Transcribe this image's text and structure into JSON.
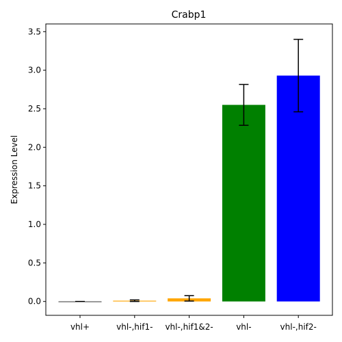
{
  "chart_data": {
    "type": "bar",
    "title": "Crabp1",
    "xlabel": "",
    "ylabel": "Expression Level",
    "categories": [
      "vhl+",
      "vhl-,hif1-",
      "vhl-,hif1&2-",
      "vhl-",
      "vhl-,hif2-"
    ],
    "values": [
      0.0,
      0.01,
      0.04,
      2.55,
      2.93
    ],
    "errors": [
      0.0,
      0.01,
      0.035,
      0.265,
      0.47
    ],
    "colors": [
      "#000000",
      "#FFA500",
      "#FFA500",
      "#008000",
      "#0000FF"
    ],
    "ylim": [
      -0.18,
      3.6
    ],
    "yticks": [
      0.0,
      0.5,
      1.0,
      1.5,
      2.0,
      2.5,
      3.0,
      3.5
    ],
    "ytick_labels": [
      "0.0",
      "0.5",
      "1.0",
      "1.5",
      "2.0",
      "2.5",
      "3.0",
      "3.5"
    ],
    "grid": false,
    "legend": "none"
  }
}
